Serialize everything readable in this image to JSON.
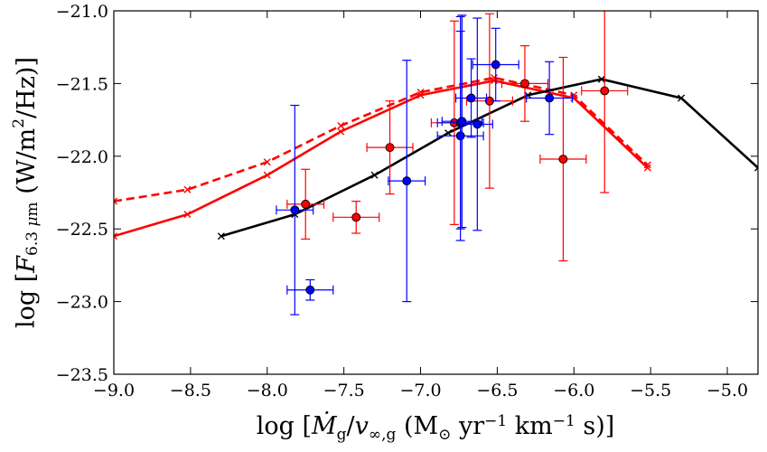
{
  "chart_data": {
    "type": "scatter",
    "title": "",
    "xlabel": "log [Ṁg/v∞,g (M⊙ yr⁻¹ km⁻¹ s)]",
    "ylabel": "log [F6.3 μm (W/m²/Hz)]",
    "xlim": [
      -9.0,
      -4.8
    ],
    "ylim": [
      -23.5,
      -21.0
    ],
    "xticks": [
      "−9.0",
      "−8.5",
      "−8.0",
      "−7.5",
      "−7.0",
      "−6.5",
      "−6.0",
      "−5.5",
      "−5.0"
    ],
    "xtick_values": [
      -9.0,
      -8.5,
      -8.0,
      -7.5,
      -7.0,
      -6.5,
      -6.0,
      -5.5,
      -5.0
    ],
    "yticks": [
      "−21.0",
      "−21.5",
      "−22.0",
      "−22.5",
      "−23.0",
      "−23.5"
    ],
    "ytick_values": [
      -21.0,
      -21.5,
      -22.0,
      -22.5,
      -23.0,
      -23.5
    ],
    "grid": false,
    "series": [
      {
        "name": "Model (red dashed)",
        "kind": "line",
        "linestyle": "dashed",
        "marker": "x",
        "color": "#ff0000",
        "x": [
          -9.0,
          -8.52,
          -8.0,
          -7.52,
          -7.0,
          -6.52,
          -6.0,
          -5.52
        ],
        "y": [
          -22.31,
          -22.23,
          -22.04,
          -21.79,
          -21.56,
          -21.46,
          -21.58,
          -22.06
        ]
      },
      {
        "name": "Model (red solid)",
        "kind": "line",
        "linestyle": "solid",
        "marker": "x",
        "color": "#ff0000",
        "x": [
          -9.0,
          -8.52,
          -8.0,
          -7.52,
          -7.0,
          -6.52,
          -6.0,
          -5.52
        ],
        "y": [
          -22.55,
          -22.4,
          -22.13,
          -21.83,
          -21.58,
          -21.48,
          -21.6,
          -22.08
        ]
      },
      {
        "name": "Model (black solid)",
        "kind": "line",
        "linestyle": "solid",
        "marker": "x",
        "color": "#000000",
        "x": [
          -8.3,
          -7.82,
          -7.3,
          -6.82,
          -6.3,
          -5.82,
          -5.3,
          -4.8
        ],
        "y": [
          -22.55,
          -22.4,
          -22.13,
          -21.84,
          -21.58,
          -21.47,
          -21.6,
          -22.08
        ]
      },
      {
        "name": "Observed (red)",
        "kind": "errorbar",
        "marker": "o",
        "color": "#ff0000",
        "points": [
          {
            "x": -7.75,
            "y": -22.33,
            "xerr": 0.12,
            "yerr": 0.24
          },
          {
            "x": -7.42,
            "y": -22.42,
            "xerr": 0.15,
            "yerr": 0.11
          },
          {
            "x": -7.2,
            "y": -21.94,
            "xerr": 0.15,
            "yerr": 0.32
          },
          {
            "x": -6.78,
            "y": -21.77,
            "xerr": 0.15,
            "yerr": 0.7
          },
          {
            "x": -6.55,
            "y": -21.62,
            "xerr": 0.15,
            "yerr": 0.6
          },
          {
            "x": -6.32,
            "y": -21.5,
            "xerr": 0.15,
            "yerr": 0.26
          },
          {
            "x": -6.07,
            "y": -22.02,
            "xerr": 0.15,
            "yerr": 0.7
          },
          {
            "x": -5.8,
            "y": -21.55,
            "xerr": 0.15,
            "yerr": 0.7
          }
        ]
      },
      {
        "name": "Observed (blue)",
        "kind": "errorbar",
        "marker": "o",
        "color": "#0000ff",
        "points": [
          {
            "x": -7.82,
            "y": -22.37,
            "xerr": 0.12,
            "yerr": 0.72
          },
          {
            "x": -7.72,
            "y": -22.92,
            "xerr": 0.15,
            "yerr": 0.07
          },
          {
            "x": -7.09,
            "y": -22.17,
            "xerr": 0.12,
            "yerr": 0.83
          },
          {
            "x": -6.74,
            "y": -21.86,
            "xerr": 0.15,
            "yerr": 0.72
          },
          {
            "x": -6.74,
            "y": -21.77,
            "xerr": 0.15,
            "yerr": 0.73
          },
          {
            "x": -6.73,
            "y": -21.76,
            "xerr": 0.13,
            "yerr": 0.73
          },
          {
            "x": -6.67,
            "y": -21.6,
            "xerr": 0.1,
            "yerr": 0.27
          },
          {
            "x": -6.63,
            "y": -21.78,
            "xerr": 0.1,
            "yerr": 0.73
          },
          {
            "x": -6.51,
            "y": -21.37,
            "xerr": 0.15,
            "yerr": 0.25
          },
          {
            "x": -6.16,
            "y": -21.6,
            "xerr": 0.15,
            "yerr": 0.25
          }
        ]
      }
    ]
  }
}
